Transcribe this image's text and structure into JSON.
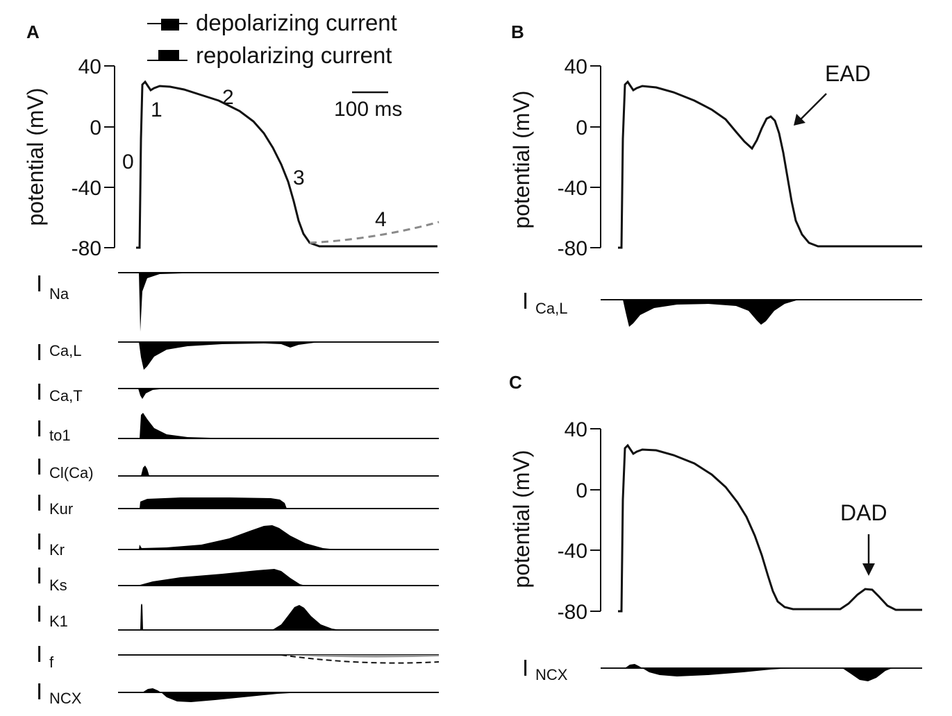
{
  "colors": {
    "ink": "#111111",
    "fill": "#000000",
    "gray": "#7a7a7a",
    "grayFill": "#9a9a9a"
  },
  "legend": {
    "depolarizing": "depolarizing current",
    "repolarizing": "repolarizing current"
  },
  "panels": {
    "A": {
      "letter": "A",
      "ylabel": "potential (mV)",
      "yticks": [
        "40",
        "0",
        "-40",
        "-80"
      ],
      "phases": [
        "0",
        "1",
        "2",
        "3",
        "4"
      ],
      "scalebar": "100 ms",
      "currents": [
        {
          "main": "I",
          "sub": "Na"
        },
        {
          "main": "I",
          "sub": "Ca,L"
        },
        {
          "main": "I",
          "sub": "Ca,T"
        },
        {
          "main": "I",
          "sub": "to1"
        },
        {
          "main": "I",
          "sub": "Cl(Ca)"
        },
        {
          "main": "I",
          "sub": "Kur"
        },
        {
          "main": "I",
          "sub": "Kr"
        },
        {
          "main": "I",
          "sub": "Ks"
        },
        {
          "main": "I",
          "sub": "K1"
        },
        {
          "main": "I",
          "sub": "f"
        },
        {
          "main": "I",
          "sub": "NCX"
        }
      ]
    },
    "B": {
      "letter": "B",
      "ylabel": "potential (mV)",
      "yticks": [
        "40",
        "0",
        "-40",
        "-80"
      ],
      "annotation": "EAD",
      "current": {
        "main": "I",
        "sub": "Ca,L"
      }
    },
    "C": {
      "letter": "C",
      "ylabel": "potential (mV)",
      "yticks": [
        "40",
        "0",
        "-40",
        "-80"
      ],
      "annotation": "DAD",
      "current": {
        "main": "I",
        "sub": "NCX"
      }
    }
  }
}
